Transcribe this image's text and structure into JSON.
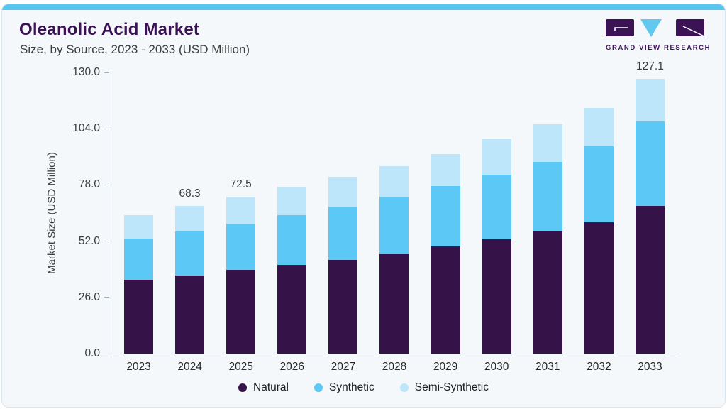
{
  "page": {
    "title": "Oleanolic Acid Market",
    "subtitle": "Size, by Source, 2023 - 2033 (USD Million)"
  },
  "logo": {
    "text": "GRAND VIEW RESEARCH"
  },
  "colors": {
    "accent_strip": "#58c5ef",
    "brand_purple": "#3b1254",
    "natural": "#351349",
    "synthetic": "#5bc8f5",
    "semi_synthetic": "#bee6fa",
    "card_background": "#f4f8fb"
  },
  "chart_data": {
    "type": "bar",
    "stacked": true,
    "title": "Oleanolic Acid Market Size, by Source, 2023 - 2033 (USD Million)",
    "xlabel": "",
    "ylabel": "Market Size (USD Million)",
    "ylim": [
      0,
      130
    ],
    "yticks": [
      130.0,
      104.0,
      78.0,
      52.0,
      26.0,
      0.0
    ],
    "grid": false,
    "legend_position": "bottom",
    "categories": [
      "2023",
      "2024",
      "2025",
      "2026",
      "2027",
      "2028",
      "2029",
      "2030",
      "2031",
      "2032",
      "2033"
    ],
    "series": [
      {
        "name": "Natural",
        "color": "#351349",
        "values": [
          34.3,
          36.1,
          38.7,
          40.9,
          43.4,
          46.1,
          49.5,
          52.8,
          56.6,
          60.8,
          68.3
        ]
      },
      {
        "name": "Synthetic",
        "color": "#5bc8f5",
        "values": [
          18.8,
          20.4,
          21.5,
          23.1,
          24.5,
          26.4,
          28.0,
          30.0,
          32.1,
          35.1,
          38.9
        ]
      },
      {
        "name": "Semi-Synthetic",
        "color": "#bee6fa",
        "values": [
          11.0,
          11.8,
          12.3,
          13.0,
          13.7,
          14.1,
          14.9,
          16.4,
          17.4,
          17.8,
          19.9
        ]
      }
    ],
    "totals": [
      64.1,
      68.3,
      72.5,
      77.0,
      81.6,
      86.6,
      92.4,
      99.2,
      106.1,
      113.7,
      127.1
    ],
    "bar_labels": {
      "2024": "68.3",
      "2025": "72.5",
      "2033": "127.1"
    }
  }
}
